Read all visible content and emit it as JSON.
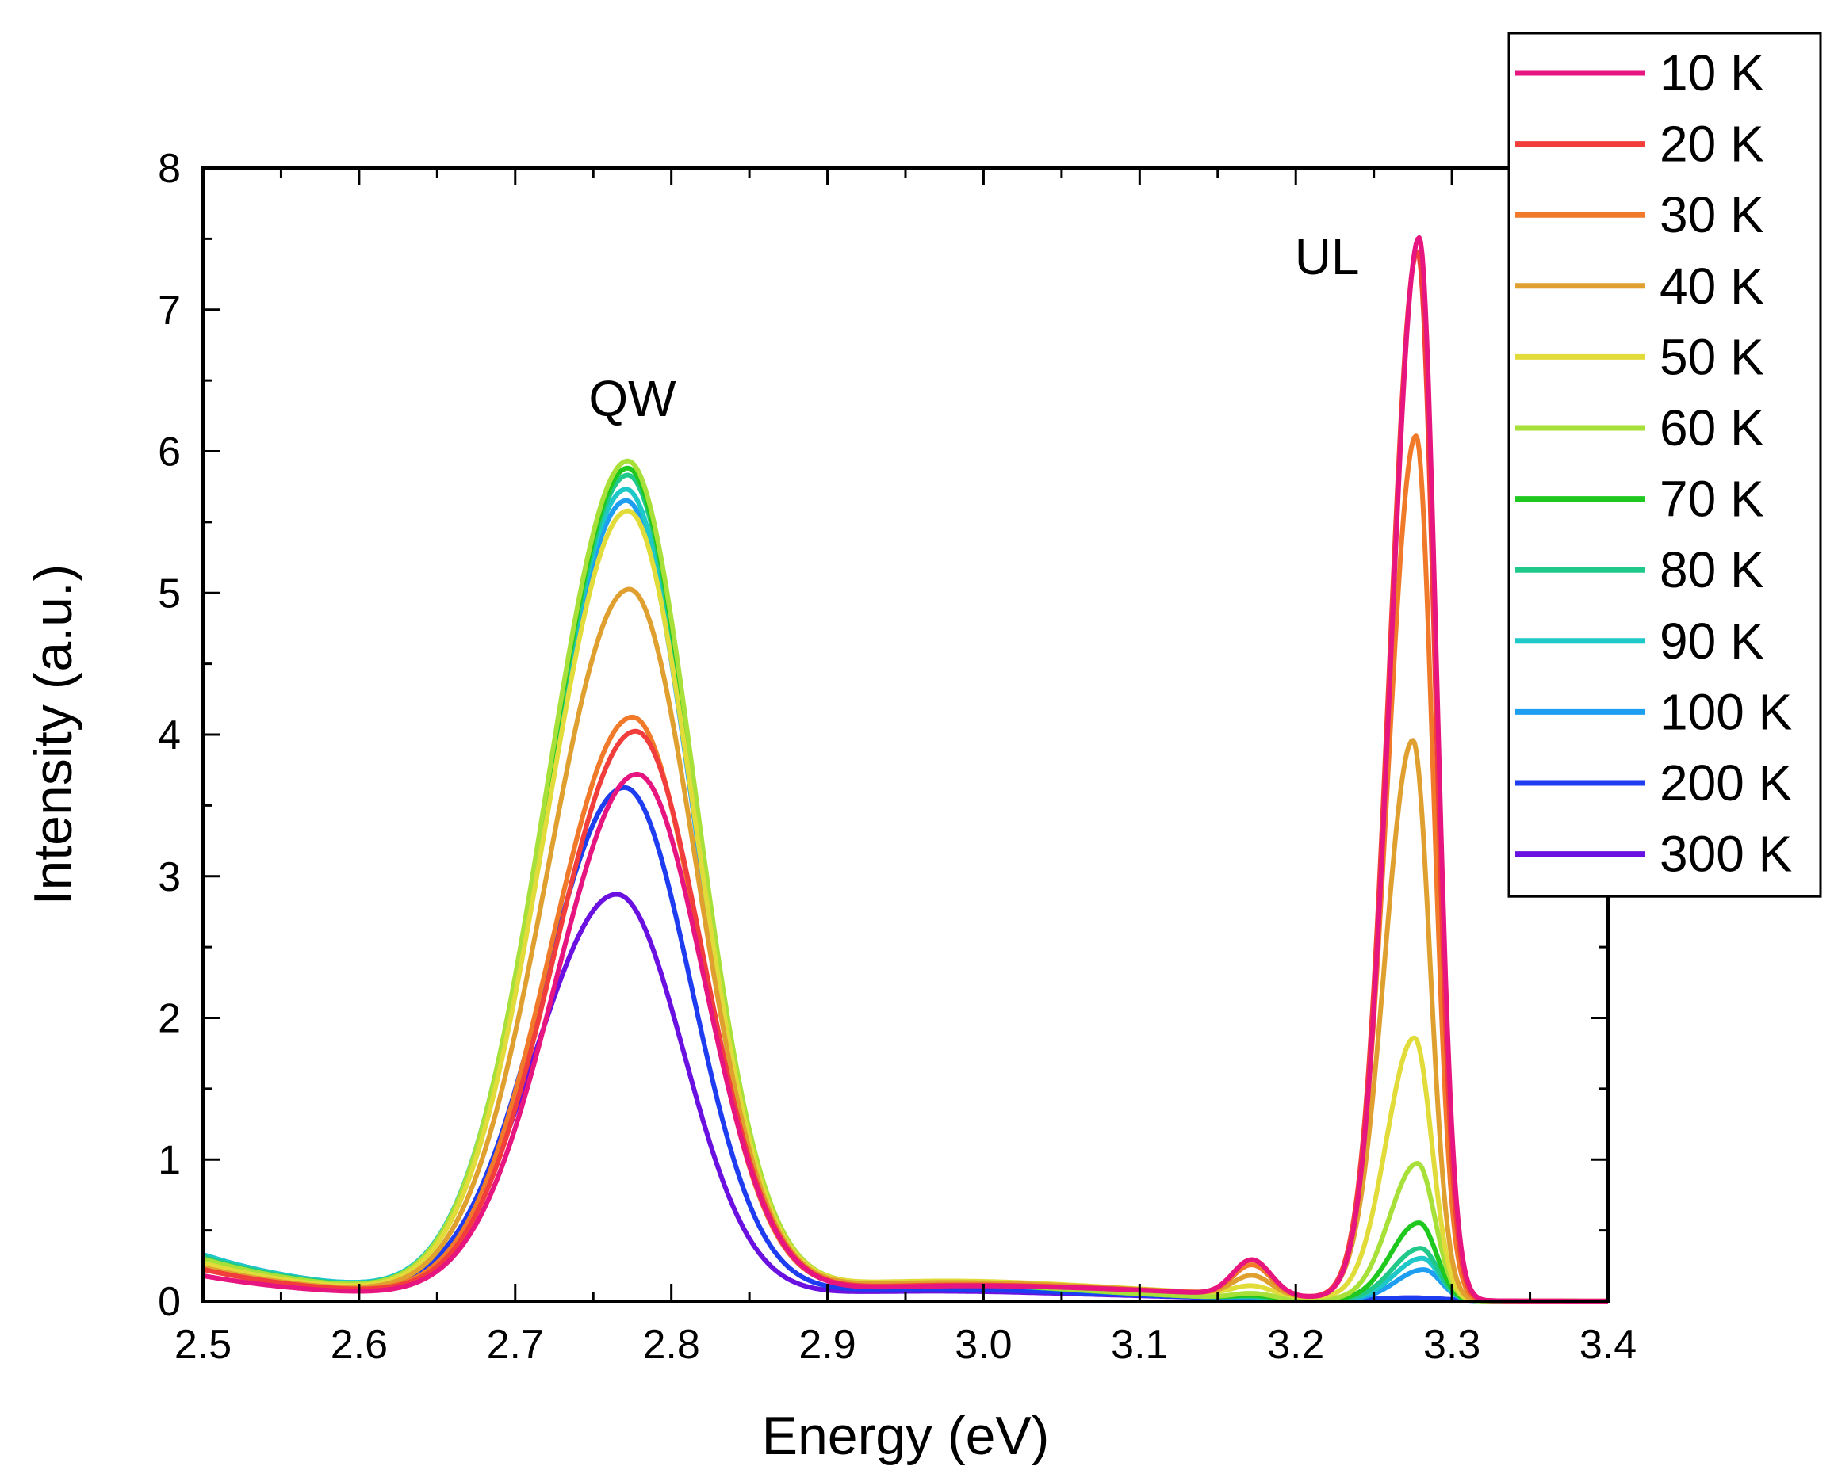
{
  "chart_data": {
    "type": "line",
    "xlabel": "Energy (eV)",
    "ylabel": "Intensity (a.u.)",
    "xlim": [
      2.5,
      3.4
    ],
    "ylim": [
      0,
      8
    ],
    "xticks": [
      "2.5",
      "2.6",
      "2.7",
      "2.8",
      "2.9",
      "3.0",
      "3.1",
      "3.2",
      "3.3",
      "3.4"
    ],
    "yticks": [
      "0",
      "1",
      "2",
      "3",
      "4",
      "5",
      "6",
      "7",
      "8"
    ],
    "grid": false,
    "legend_position": "top-right",
    "annotations": [
      {
        "text": "QW",
        "x": 2.775,
        "y": 6.25
      },
      {
        "text": "UL",
        "x": 3.22,
        "y": 7.25
      }
    ],
    "series": [
      {
        "name": "10 K",
        "color": "#e6157f",
        "qw_peak": 3.7,
        "qw_center": 2.778,
        "ul_peak": 7.5,
        "ul_center": 3.279,
        "tail": 0.12
      },
      {
        "name": "20 K",
        "color": "#f23d3d",
        "qw_peak": 4.0,
        "qw_center": 2.777,
        "ul_peak": 7.4,
        "ul_center": 3.278,
        "tail": 0.15
      },
      {
        "name": "30 K",
        "color": "#f07a2a",
        "qw_peak": 4.1,
        "qw_center": 2.775,
        "ul_peak": 6.1,
        "ul_center": 3.277,
        "tail": 0.15
      },
      {
        "name": "40 K",
        "color": "#e0a030",
        "qw_peak": 5.0,
        "qw_center": 2.773,
        "ul_peak": 3.95,
        "ul_center": 3.275,
        "tail": 0.16
      },
      {
        "name": "50 K",
        "color": "#e2dc3a",
        "qw_peak": 5.55,
        "qw_center": 2.772,
        "ul_peak": 1.85,
        "ul_center": 3.276,
        "tail": 0.18
      },
      {
        "name": "60 K",
        "color": "#a8e03a",
        "qw_peak": 5.9,
        "qw_center": 2.772,
        "ul_peak": 0.97,
        "ul_center": 3.278,
        "tail": 0.2
      },
      {
        "name": "70 K",
        "color": "#1ec81e",
        "qw_peak": 5.85,
        "qw_center": 2.772,
        "ul_peak": 0.55,
        "ul_center": 3.279,
        "tail": 0.2
      },
      {
        "name": "80 K",
        "color": "#20c98a",
        "qw_peak": 5.8,
        "qw_center": 2.772,
        "ul_peak": 0.37,
        "ul_center": 3.28,
        "tail": 0.21
      },
      {
        "name": "90 K",
        "color": "#1ec8c8",
        "qw_peak": 5.7,
        "qw_center": 2.771,
        "ul_peak": 0.3,
        "ul_center": 3.281,
        "tail": 0.22
      },
      {
        "name": "100 K",
        "color": "#1e9ef0",
        "qw_peak": 5.62,
        "qw_center": 2.771,
        "ul_peak": 0.22,
        "ul_center": 3.282,
        "tail": 0.22
      },
      {
        "name": "200 K",
        "color": "#1e3cf0",
        "qw_peak": 3.6,
        "qw_center": 2.77,
        "ul_peak": 0.0,
        "ul_center": 3.28,
        "tail": 0.22
      },
      {
        "name": "300 K",
        "color": "#6a10e0",
        "qw_peak": 2.85,
        "qw_center": 2.765,
        "ul_peak": 0.0,
        "ul_center": 3.28,
        "tail": 0.2
      }
    ]
  }
}
